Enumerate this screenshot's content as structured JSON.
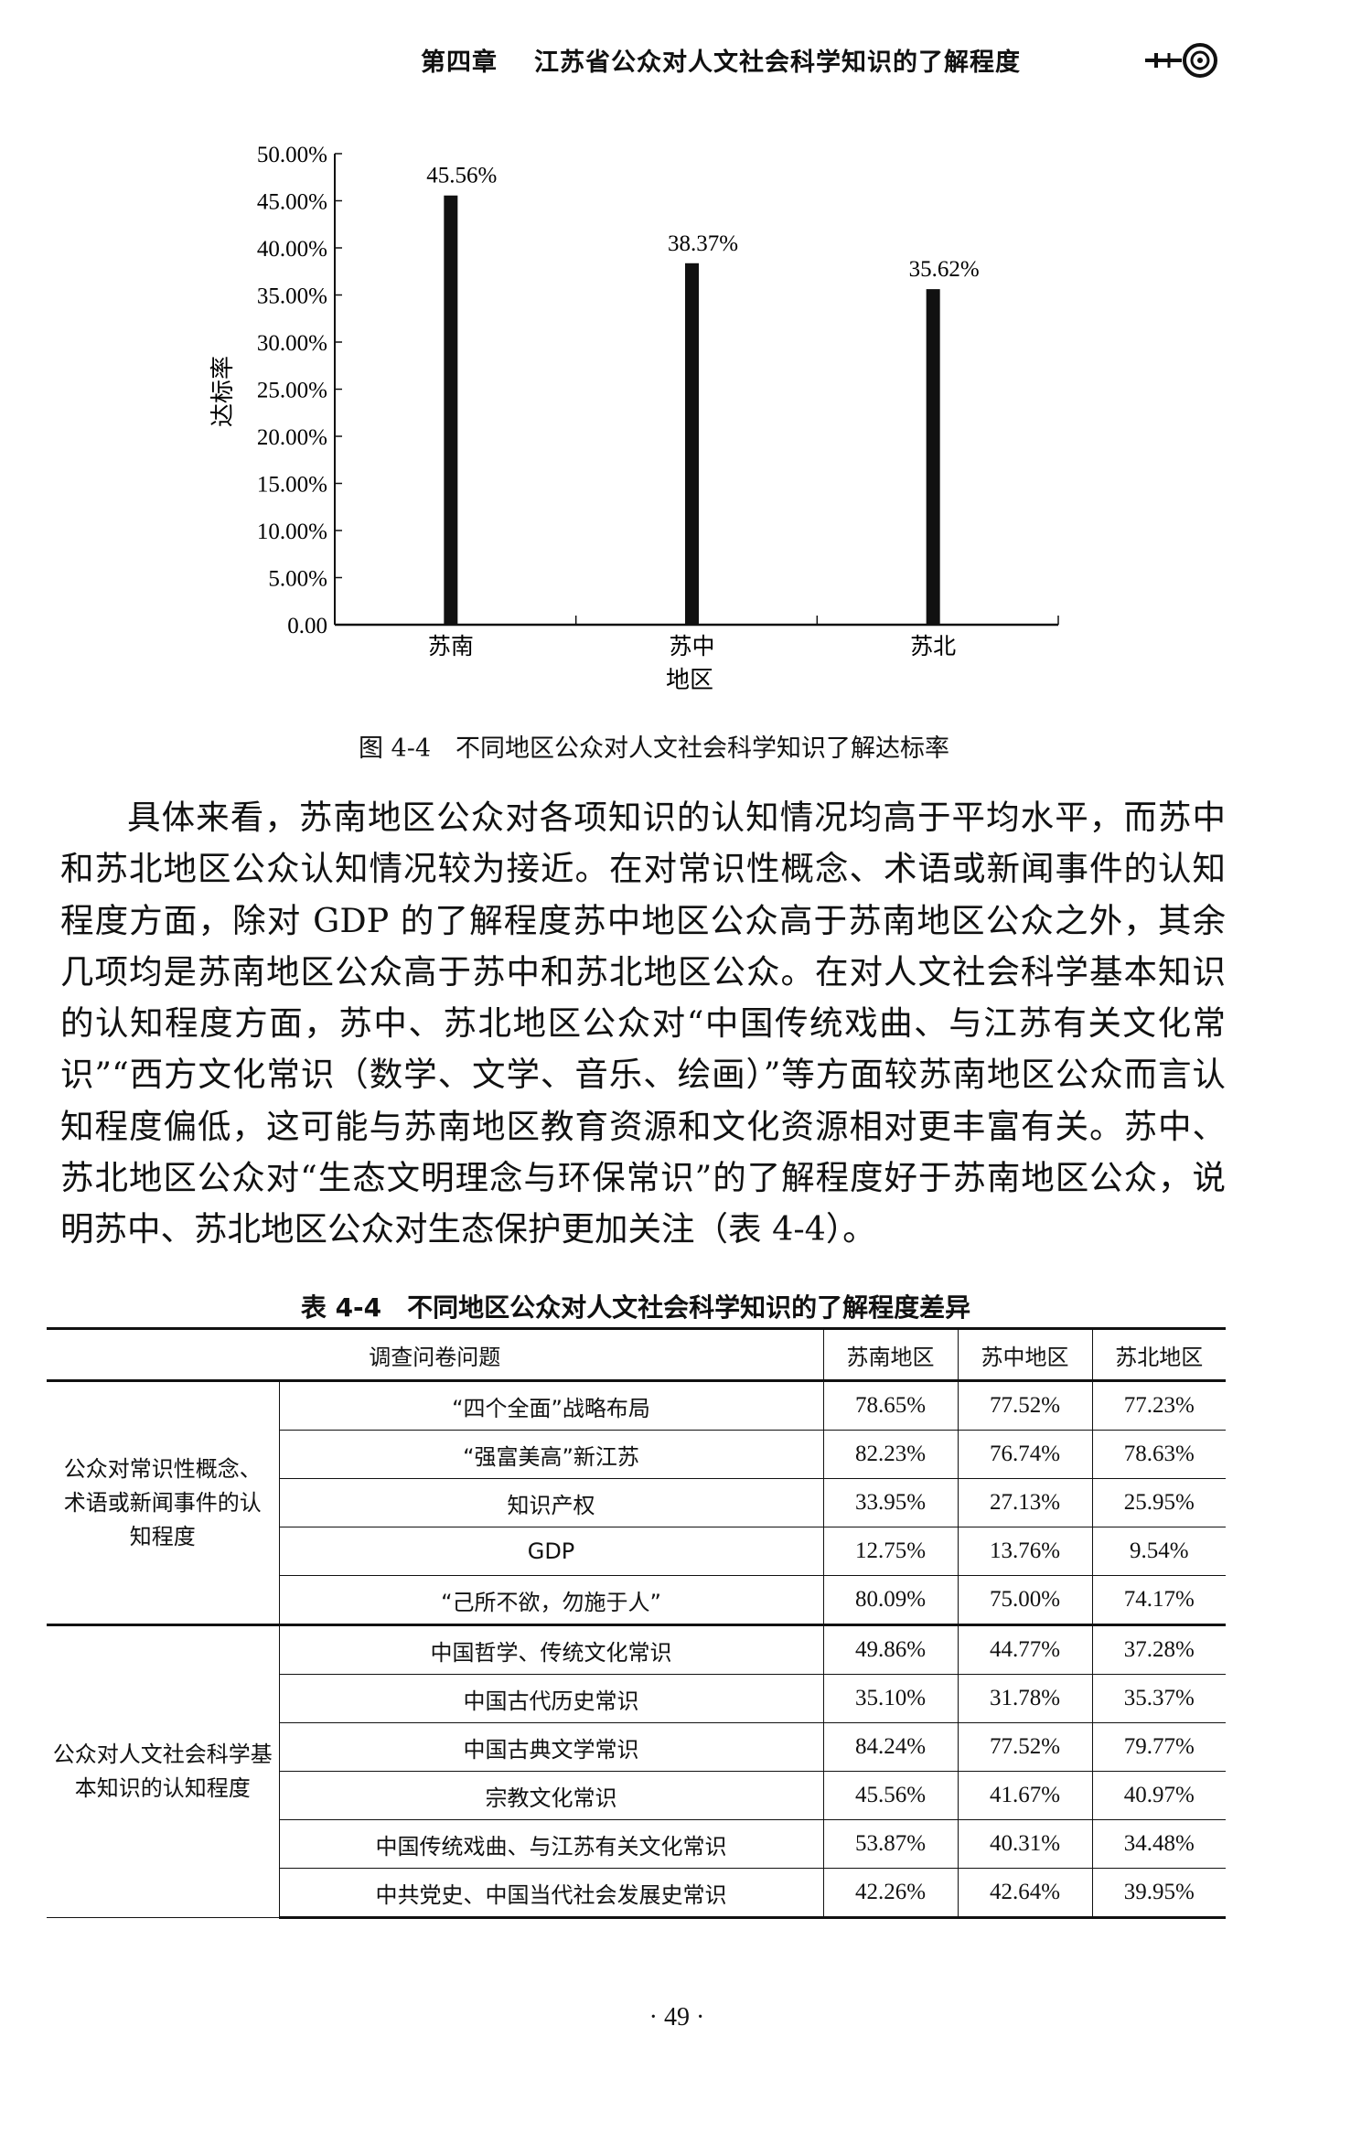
{
  "header": {
    "chapter": "第四章",
    "title": "江苏省公众对人文社会科学知识的了解程度"
  },
  "chart_data": {
    "type": "bar",
    "categories": [
      "苏南",
      "苏中",
      "苏北"
    ],
    "values": [
      45.56,
      38.37,
      35.62
    ],
    "data_labels": [
      "45.56%",
      "38.37%",
      "35.62%"
    ],
    "xlabel": "地区",
    "ylabel": "达标率",
    "ylim": [
      0,
      50
    ],
    "yticks": [
      "0.00",
      "5.00%",
      "10.00%",
      "15.00%",
      "20.00%",
      "25.00%",
      "30.00%",
      "35.00%",
      "40.00%",
      "45.00%",
      "50.00%"
    ],
    "grid": false,
    "bar_color": "#111111"
  },
  "figure": {
    "caption": "图 4-4　不同地区公众对人文社会科学知识了解达标率"
  },
  "body": {
    "paragraph": "具体来看，苏南地区公众对各项知识的认知情况均高于平均水平，而苏中和苏北地区公众认知情况较为接近。在对常识性概念、术语或新闻事件的认知程度方面，除对 GDP 的了解程度苏中地区公众高于苏南地区公众之外，其余几项均是苏南地区公众高于苏中和苏北地区公众。在对人文社会科学基本知识的认知程度方面，苏中、苏北地区公众对“中国传统戏曲、与江苏有关文化常识”“西方文化常识（数学、文学、音乐、绘画）”等方面较苏南地区公众而言认知程度偏低，这可能与苏南地区教育资源和文化资源相对更丰富有关。苏中、苏北地区公众对“生态文明理念与环保常识”的了解程度好于苏南地区公众，说明苏中、苏北地区公众对生态保护更加关注（表 4-4）。"
  },
  "table": {
    "title": "表 4-4　不同地区公众对人文社会科学知识的了解程度差异",
    "headers": [
      "调查问卷问题",
      "苏南地区",
      "苏中地区",
      "苏北地区"
    ],
    "groups": [
      {
        "label": "公众对常识性概念、术语或新闻事件的认知程度",
        "rows": [
          {
            "item": "“四个全面”战略布局",
            "values": [
              "78.65%",
              "77.52%",
              "77.23%"
            ]
          },
          {
            "item": "“强富美高”新江苏",
            "values": [
              "82.23%",
              "76.74%",
              "78.63%"
            ]
          },
          {
            "item": "知识产权",
            "values": [
              "33.95%",
              "27.13%",
              "25.95%"
            ]
          },
          {
            "item": "GDP",
            "values": [
              "12.75%",
              "13.76%",
              "9.54%"
            ]
          },
          {
            "item": "“己所不欲，勿施于人”",
            "values": [
              "80.09%",
              "75.00%",
              "74.17%"
            ]
          }
        ]
      },
      {
        "label": "公众对人文社会科学基本知识的认知程度",
        "rows": [
          {
            "item": "中国哲学、传统文化常识",
            "values": [
              "49.86%",
              "44.77%",
              "37.28%"
            ]
          },
          {
            "item": "中国古代历史常识",
            "values": [
              "35.10%",
              "31.78%",
              "35.37%"
            ]
          },
          {
            "item": "中国古典文学常识",
            "values": [
              "84.24%",
              "77.52%",
              "79.77%"
            ]
          },
          {
            "item": "宗教文化常识",
            "values": [
              "45.56%",
              "41.67%",
              "40.97%"
            ]
          },
          {
            "item": "中国传统戏曲、与江苏有关文化常识",
            "values": [
              "53.87%",
              "40.31%",
              "34.48%"
            ]
          },
          {
            "item": "中共党史、中国当代社会发展史常识",
            "values": [
              "42.26%",
              "42.64%",
              "39.95%"
            ]
          }
        ]
      }
    ]
  },
  "footer": {
    "page_number": "· 49 ·"
  }
}
